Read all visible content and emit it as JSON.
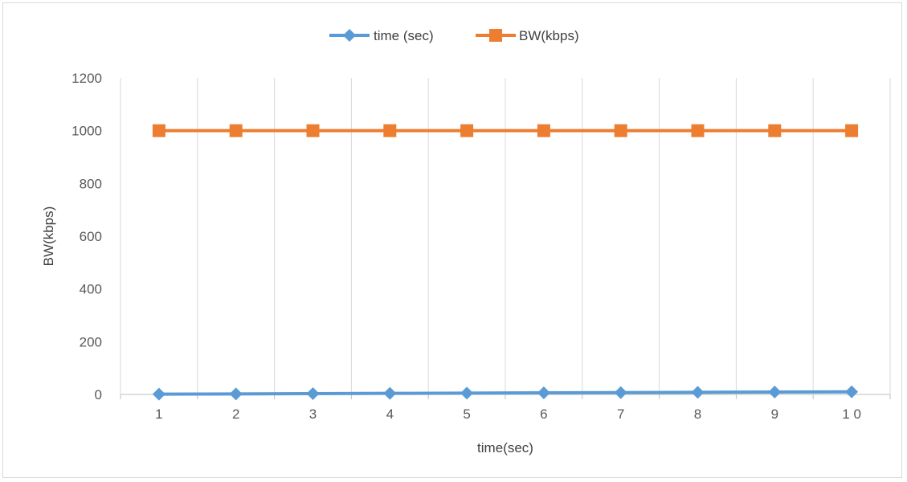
{
  "chart_data": {
    "type": "line",
    "title": "",
    "xlabel": "time(sec)",
    "ylabel": "BW(kbps)",
    "categories": [
      "1",
      "2",
      "3",
      "4",
      "5",
      "6",
      "7",
      "8",
      "9",
      "1 0"
    ],
    "ylim": [
      0,
      1200
    ],
    "yticks": [
      0,
      200,
      400,
      600,
      800,
      1000,
      1200
    ],
    "grid": "vertical",
    "legend_position": "top",
    "series": [
      {
        "name": "time (sec)",
        "color": "#5b9bd5",
        "marker": "diamond",
        "values": [
          1,
          2,
          3,
          4,
          5,
          6,
          7,
          8,
          9,
          10
        ]
      },
      {
        "name": "BW(kbps)",
        "color": "#ed7d31",
        "marker": "square",
        "values": [
          1000,
          1000,
          1000,
          1000,
          1000,
          1000,
          1000,
          1000,
          1000,
          1000
        ]
      }
    ]
  }
}
